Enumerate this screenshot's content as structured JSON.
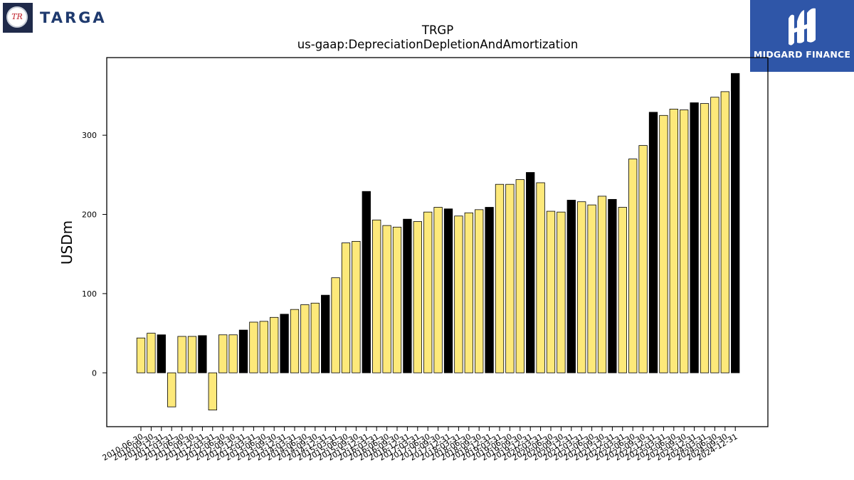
{
  "header": {
    "left_logo_text": "TARGA",
    "left_logo_badge": "TR",
    "right_logo_text": "MIDGARD FINANCE"
  },
  "colors": {
    "bar_default": "#fde97a",
    "bar_highlight": "#000000",
    "bar_edge": "#000000",
    "right_logo_bg": "#2f56a8"
  },
  "chart_data": {
    "type": "bar",
    "title": "TRGP",
    "subtitle": "us-gaap:DepreciationDepletionAndAmortization",
    "xlabel": "",
    "ylabel": "USDm",
    "ylim": [
      -68,
      398
    ],
    "yticks": [
      0,
      100,
      200,
      300
    ],
    "grid": false,
    "categories": [
      "2010-06-30",
      "2010-09-30",
      "2010-12-31",
      "2011-03-31",
      "2011-06-30",
      "2011-09-30",
      "2011-12-31",
      "2012-03-31",
      "2012-06-30",
      "2012-09-30",
      "2012-12-31",
      "2013-03-31",
      "2013-06-30",
      "2013-09-30",
      "2013-12-31",
      "2014-03-31",
      "2014-06-30",
      "2014-09-30",
      "2014-12-31",
      "2015-03-31",
      "2015-06-30",
      "2015-09-30",
      "2015-12-31",
      "2016-03-31",
      "2016-06-30",
      "2016-09-30",
      "2016-12-31",
      "2017-03-31",
      "2017-06-30",
      "2017-09-30",
      "2017-12-31",
      "2018-03-31",
      "2018-06-30",
      "2018-09-30",
      "2018-12-31",
      "2019-03-31",
      "2019-06-30",
      "2019-09-30",
      "2019-12-31",
      "2020-03-31",
      "2020-06-30",
      "2020-09-30",
      "2020-12-31",
      "2021-03-31",
      "2021-06-30",
      "2021-09-30",
      "2021-12-31",
      "2022-03-31",
      "2022-06-30",
      "2022-09-30",
      "2022-12-31",
      "2023-03-31",
      "2023-06-30",
      "2023-09-30",
      "2023-12-31",
      "2024-03-31",
      "2024-06-30",
      "2024-09-30",
      "2024-12-31"
    ],
    "values": [
      44,
      50,
      48,
      -43,
      46,
      46,
      47,
      -47,
      48,
      48,
      54,
      64,
      65,
      70,
      74,
      80,
      86,
      88,
      98,
      120,
      164,
      166,
      229,
      193,
      186,
      184,
      194,
      191,
      203,
      209,
      207,
      198,
      202,
      206,
      209,
      238,
      238,
      244,
      253,
      240,
      204,
      203,
      218,
      216,
      212,
      223,
      219,
      209,
      270,
      287,
      329,
      325,
      333,
      332,
      341,
      340,
      348,
      355,
      378
    ],
    "highlight": [
      false,
      false,
      true,
      false,
      false,
      false,
      true,
      false,
      false,
      false,
      true,
      false,
      false,
      false,
      true,
      false,
      false,
      false,
      true,
      false,
      false,
      false,
      true,
      false,
      false,
      false,
      true,
      false,
      false,
      false,
      true,
      false,
      false,
      false,
      true,
      false,
      false,
      false,
      true,
      false,
      false,
      false,
      true,
      false,
      false,
      false,
      true,
      false,
      false,
      false,
      true,
      false,
      false,
      false,
      true,
      false,
      false,
      false,
      true
    ]
  }
}
